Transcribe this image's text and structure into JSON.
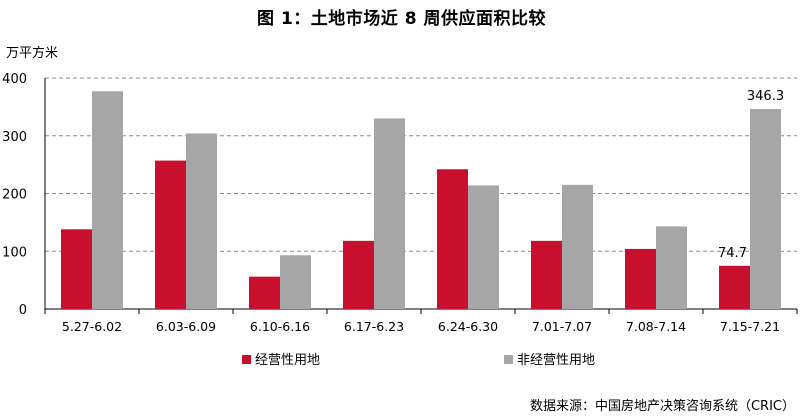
{
  "chart_data": {
    "type": "bar",
    "title": "图 1：土地市场近 8 周供应面积比较",
    "unit_label": "万平方米",
    "categories": [
      "5.27-6.02",
      "6.03-6.09",
      "6.10-6.16",
      "6.17-6.23",
      "6.24-6.30",
      "7.01-7.07",
      "7.08-7.14",
      "7.15-7.21"
    ],
    "series": [
      {
        "name": "经营性用地",
        "color": "#c8102e",
        "values": [
          138,
          257,
          56,
          118,
          242,
          118,
          104,
          74.7
        ]
      },
      {
        "name": "非经营性用地",
        "color": "#a6a6a6",
        "values": [
          377,
          304,
          93,
          330,
          214,
          215,
          143,
          346.3
        ]
      }
    ],
    "data_labels": [
      {
        "series": 0,
        "index": 7,
        "text": "74.7"
      },
      {
        "series": 1,
        "index": 7,
        "text": "346.3"
      }
    ],
    "ylim": [
      0,
      400
    ],
    "yticks": [
      0,
      100,
      200,
      300,
      400
    ],
    "grid": true,
    "legend_position": "bottom",
    "source": "数据来源：中国房地产决策咨询系统（CRIC）"
  }
}
